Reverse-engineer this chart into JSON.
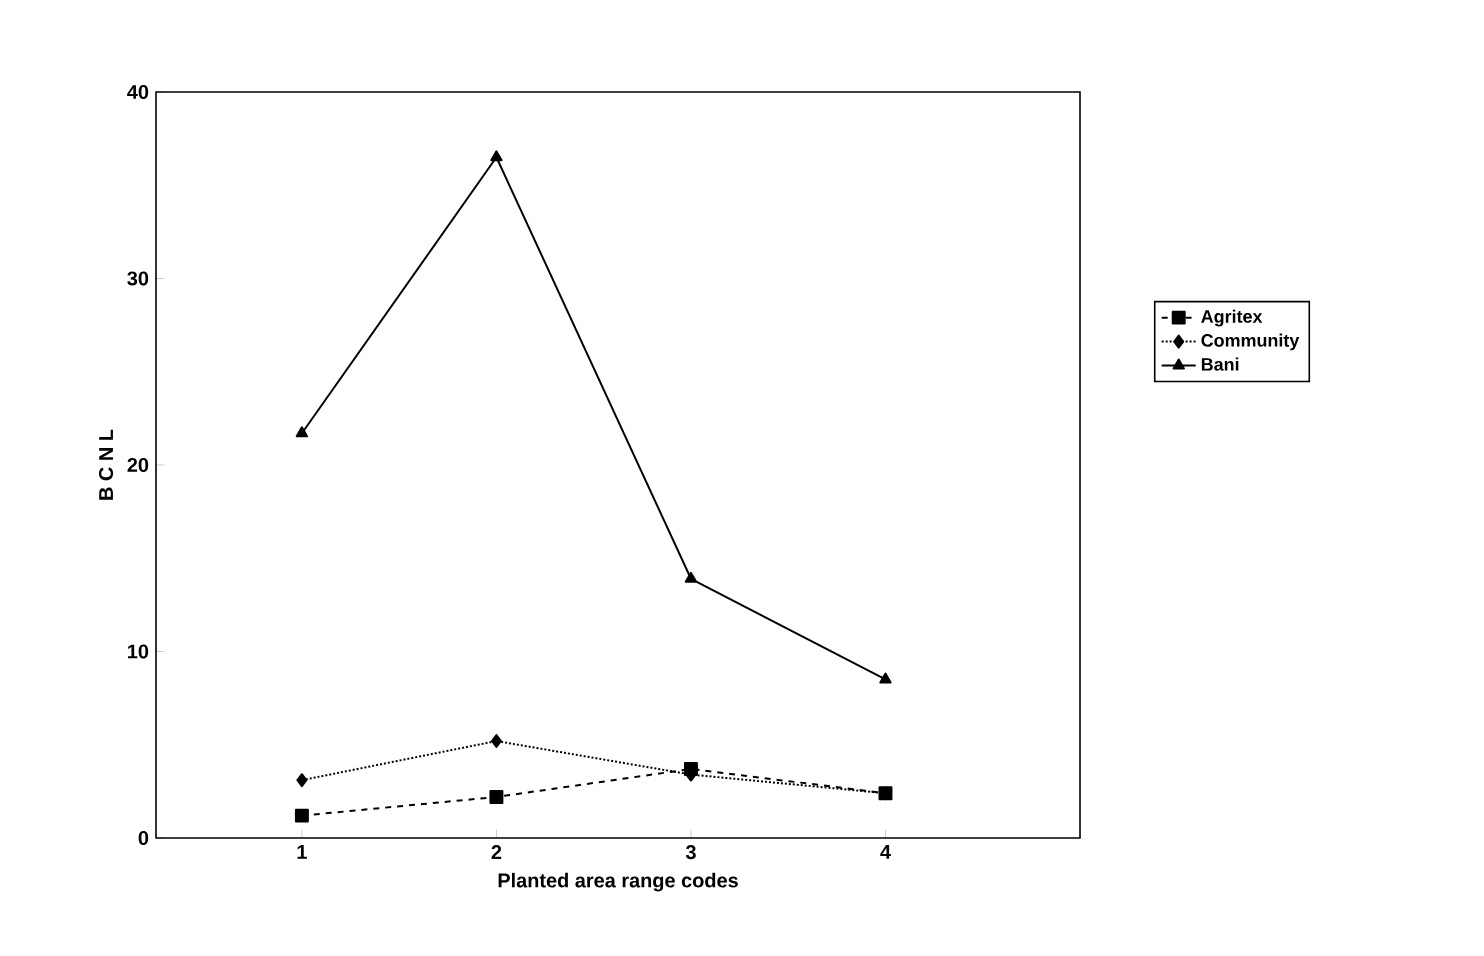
{
  "chart_data": {
    "type": "line",
    "xlabel": "Planted area range codes",
    "ylabel": "B C N L",
    "x": [
      1,
      2,
      3,
      4
    ],
    "xlim": [
      0.25,
      5
    ],
    "xticks": [
      1,
      2,
      3,
      4
    ],
    "ylim": [
      0,
      40
    ],
    "yticks": [
      0,
      10,
      20,
      30,
      40
    ],
    "legend": "right",
    "grid": false,
    "series": [
      {
        "name": "Agritex",
        "color": "#000000",
        "marker": "square",
        "line_style": "dashed",
        "values": [
          1.2,
          2.2,
          3.7,
          2.4
        ]
      },
      {
        "name": "Community",
        "color": "#000000",
        "marker": "diamond",
        "line_style": "dotted",
        "values": [
          3.1,
          5.2,
          3.4,
          2.4
        ]
      },
      {
        "name": "Bani",
        "color": "#000000",
        "marker": "triangle",
        "line_style": "solid",
        "values": [
          21.7,
          36.5,
          13.9,
          8.5
        ]
      }
    ]
  }
}
